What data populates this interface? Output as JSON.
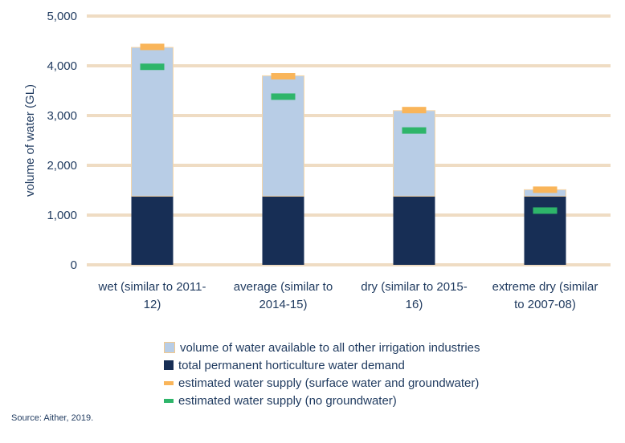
{
  "chart_data": {
    "type": "bar",
    "stacked": true,
    "ylabel": "volume of water (GL)",
    "ylim": [
      0,
      5000
    ],
    "yticks": [
      0,
      1000,
      2000,
      3000,
      4000,
      5000
    ],
    "ytick_labels": [
      "0",
      "1,000",
      "2,000",
      "3,000",
      "4,000",
      "5,000"
    ],
    "categories": [
      [
        "wet (similar to 2011-",
        "12)"
      ],
      [
        "average (similar to",
        "2014-15)"
      ],
      [
        "dry (similar to 2015-",
        "16)"
      ],
      [
        "extreme dry (similar",
        "to 2007-08)"
      ]
    ],
    "series": [
      {
        "name": "total permanent horticulture water demand",
        "kind": "bar",
        "color": "#172e55",
        "values": [
          1380,
          1380,
          1380,
          1380
        ]
      },
      {
        "name": "volume of water available to all other irrigation industries",
        "kind": "bar",
        "color": "#b8cde6",
        "values": [
          2990,
          2420,
          1720,
          130
        ]
      },
      {
        "name": "estimated water supply (surface water and groundwater)",
        "kind": "marker",
        "color": "#f9b55a",
        "values": [
          4380,
          3790,
          3110,
          1510
        ]
      },
      {
        "name": "estimated water supply (no groundwater)",
        "kind": "marker",
        "color": "#2eb56a",
        "values": [
          3980,
          3380,
          2700,
          1090
        ]
      }
    ],
    "legend_order": [
      1,
      0,
      2,
      3
    ],
    "grid": true,
    "grid_color": "#efdcc3",
    "legend_position": "bottom"
  },
  "source": "Source: Aither, 2019."
}
